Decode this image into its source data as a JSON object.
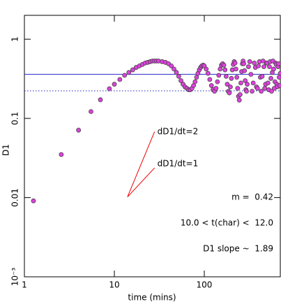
{
  "chart_data": {
    "type": "scatter",
    "xlabel": "time (mins)",
    "ylabel": "D1",
    "xscale": "log",
    "yscale": "log",
    "xlim": [
      1,
      700
    ],
    "ylim": [
      0.001,
      2
    ],
    "xticks": [
      1,
      10,
      100
    ],
    "yticks": [
      1,
      0.1,
      0.01,
      {
        "value": 0.001,
        "label": "10⁻³"
      }
    ],
    "series": [
      {
        "color": "#e040e0",
        "x": [
          1.26,
          2.57,
          4.0,
          5.5,
          7.0,
          8.8,
          10,
          11.5,
          13,
          14.5,
          16,
          17.5,
          19,
          20.5,
          22,
          23.5,
          25,
          26.5,
          28,
          29.5,
          31,
          34,
          37,
          40,
          43,
          46,
          49,
          52,
          55,
          58,
          61,
          64,
          67,
          70,
          73,
          76,
          79,
          82,
          85,
          88,
          91,
          94,
          97,
          100,
          105,
          110,
          115,
          120,
          125,
          130,
          135,
          140,
          145,
          150,
          155,
          160,
          165,
          170,
          175,
          180,
          185,
          190,
          195,
          200,
          205,
          210,
          215,
          220,
          225,
          230,
          235,
          240,
          245,
          250,
          255,
          260,
          265,
          270,
          275,
          280,
          285,
          290,
          295,
          300,
          310,
          320,
          330,
          340,
          350,
          360,
          370,
          380,
          390,
          400,
          410,
          420,
          430,
          440,
          450,
          460,
          470,
          480,
          490,
          500,
          510,
          520,
          530,
          540,
          550,
          560,
          570,
          580,
          590,
          600,
          610,
          620,
          630,
          640,
          650,
          660,
          670,
          680,
          690,
          700
        ],
        "values": [
          0.0091,
          0.035,
          0.071,
          0.122,
          0.172,
          0.237,
          0.27,
          0.31,
          0.35,
          0.38,
          0.41,
          0.44,
          0.46,
          0.48,
          0.5,
          0.51,
          0.52,
          0.53,
          0.53,
          0.53,
          0.53,
          0.52,
          0.51,
          0.49,
          0.46,
          0.42,
          0.38,
          0.34,
          0.3,
          0.27,
          0.25,
          0.24,
          0.23,
          0.23,
          0.24,
          0.26,
          0.29,
          0.33,
          0.37,
          0.41,
          0.44,
          0.46,
          0.47,
          0.46,
          0.42,
          0.37,
          0.31,
          0.26,
          0.23,
          0.22,
          0.24,
          0.29,
          0.35,
          0.42,
          0.47,
          0.49,
          0.47,
          0.41,
          0.34,
          0.27,
          0.22,
          0.21,
          0.25,
          0.32,
          0.41,
          0.48,
          0.52,
          0.5,
          0.42,
          0.33,
          0.24,
          0.19,
          0.17,
          0.2,
          0.28,
          0.39,
          0.49,
          0.53,
          0.49,
          0.4,
          0.3,
          0.23,
          0.22,
          0.27,
          0.45,
          0.52,
          0.36,
          0.22,
          0.28,
          0.5,
          0.44,
          0.25,
          0.24,
          0.46,
          0.52,
          0.33,
          0.22,
          0.34,
          0.53,
          0.45,
          0.24,
          0.27,
          0.5,
          0.5,
          0.28,
          0.23,
          0.45,
          0.52,
          0.32,
          0.22,
          0.38,
          0.53,
          0.42,
          0.24,
          0.29,
          0.5,
          0.48,
          0.27,
          0.25,
          0.45,
          0.49,
          0.33,
          0.26,
          0.37
        ]
      }
    ],
    "hlines": [
      {
        "y": 0.36,
        "color": "#2222cc",
        "style": "solid"
      },
      {
        "y": 0.223,
        "color": "#2222cc",
        "style": "dotted"
      }
    ],
    "segments": [
      {
        "label": "dD1/dt=2",
        "color": "#ee0000",
        "x": [
          14,
          28
        ],
        "y": [
          0.0102,
          0.068
        ]
      },
      {
        "label": "dD1/dt=1",
        "color": "#ee0000",
        "x": [
          14,
          28
        ],
        "y": [
          0.0102,
          0.0237
        ]
      }
    ],
    "notes": [
      "m =  0.42",
      "10.0 < t(char) <  12.0",
      "D1 slope ~  1.89"
    ]
  }
}
